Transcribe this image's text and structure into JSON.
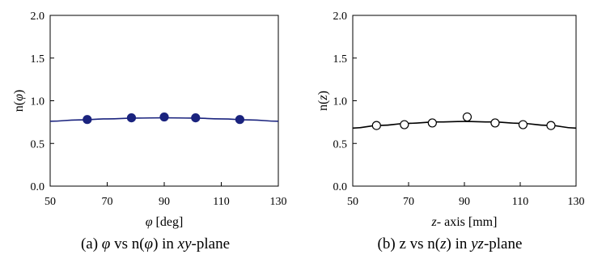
{
  "chart_data": [
    {
      "type": "scatter",
      "caption_parts": [
        "(a) ",
        "φ",
        " vs n(",
        "φ",
        ") in ",
        "xy",
        "-plane"
      ],
      "xlabel_parts": [
        "φ",
        " [deg]"
      ],
      "ylabel_parts": [
        "n(",
        "φ",
        ")"
      ],
      "xlim": [
        50,
        130
      ],
      "ylim": [
        0.0,
        2.0
      ],
      "xticks": [
        "50",
        "70",
        "90",
        "110",
        "130"
      ],
      "yticks": [
        "0.0",
        "0.5",
        "1.0",
        "1.5",
        "2.0"
      ],
      "grid": false,
      "line_color": "#1a237e",
      "marker_fill": "#1a237e",
      "marker_style": "filled-circle",
      "series": [
        {
          "kind": "markers",
          "x": [
            63,
            78.5,
            90,
            101,
            116.5
          ],
          "y": [
            0.78,
            0.8,
            0.81,
            0.8,
            0.78
          ]
        },
        {
          "kind": "fit-curve",
          "x": [
            50,
            60,
            70,
            80,
            90,
            100,
            110,
            120,
            130
          ],
          "y": [
            0.76,
            0.775,
            0.788,
            0.797,
            0.8,
            0.797,
            0.788,
            0.775,
            0.76
          ]
        }
      ]
    },
    {
      "type": "scatter",
      "caption_parts": [
        "(b) z vs n(",
        "z",
        ") in ",
        "yz",
        "-plane"
      ],
      "xlabel_parts": [
        "z",
        "- axis [mm]"
      ],
      "ylabel_parts": [
        "n(",
        "z",
        ")"
      ],
      "xlim": [
        50,
        130
      ],
      "ylim": [
        0.0,
        2.0
      ],
      "xticks": [
        "50",
        "70",
        "90",
        "110",
        "130"
      ],
      "yticks": [
        "0.0",
        "0.5",
        "1.0",
        "1.5",
        "2.0"
      ],
      "grid": false,
      "line_color": "#000000",
      "marker_fill": "#ffffff",
      "marker_style": "open-circle",
      "series": [
        {
          "kind": "markers",
          "x": [
            58.5,
            68.5,
            78.5,
            91,
            101,
            111,
            121
          ],
          "y": [
            0.71,
            0.72,
            0.74,
            0.81,
            0.74,
            0.72,
            0.71
          ]
        },
        {
          "kind": "fit-curve",
          "x": [
            50,
            60,
            70,
            80,
            90,
            100,
            110,
            120,
            130
          ],
          "y": [
            0.68,
            0.712,
            0.736,
            0.752,
            0.757,
            0.752,
            0.736,
            0.712,
            0.68
          ]
        }
      ]
    }
  ]
}
